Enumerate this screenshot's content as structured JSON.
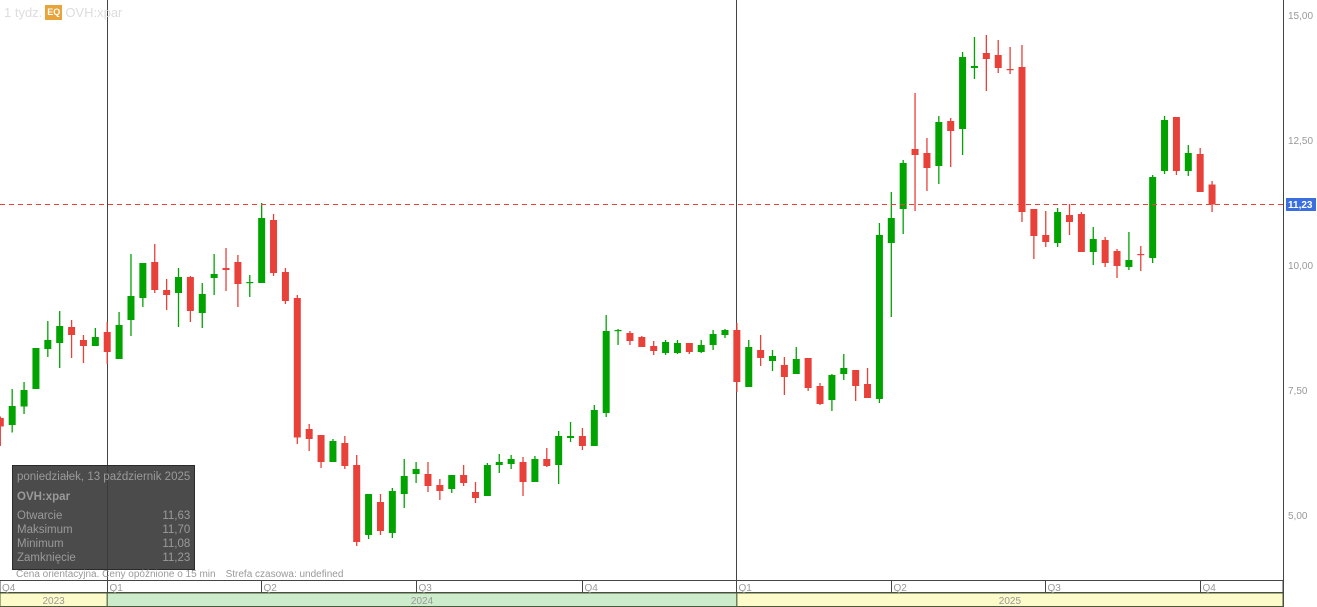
{
  "header": {
    "interval": "1 tydz.",
    "badge": "EQ",
    "symbol": "OVH:xpar"
  },
  "tooltip": {
    "date": "poniedziałek, 13 październik 2025",
    "symbol": "OVH:xpar",
    "rows": [
      {
        "label": "Otwarcie",
        "value": "11,63"
      },
      {
        "label": "Maksimum",
        "value": "11,70"
      },
      {
        "label": "Minimum",
        "value": "11,08"
      },
      {
        "label": "Zamknięcie",
        "value": "11,23"
      }
    ]
  },
  "footer": {
    "disclaimer": "Cena orientacyjna. Ceny opóźnione o 15 min",
    "timezone": "Strefa czasowa: undefined"
  },
  "colors": {
    "up": "#00a300",
    "down": "#e8413a",
    "last_price": "#3b6fe0",
    "year_odd": "#fdfbc9",
    "year_even": "#cdeccc"
  },
  "chart_data": {
    "type": "candlestick",
    "interval": "weekly",
    "ylim": [
      3.7,
      15.32
    ],
    "y_ticks": [
      "15,00",
      "12,50",
      "10,00",
      "7,50",
      "5,00"
    ],
    "y_tick_values": [
      15,
      12.5,
      10,
      7.5,
      5
    ],
    "last_price": {
      "value": 11.23,
      "label": "11,23"
    },
    "quarters": [
      {
        "label": "Q4",
        "start": 0
      },
      {
        "label": "Q1",
        "start": 9
      },
      {
        "label": "Q2",
        "start": 22
      },
      {
        "label": "Q3",
        "start": 35
      },
      {
        "label": "Q4",
        "start": 49
      },
      {
        "label": "Q1",
        "start": 62
      },
      {
        "label": "Q2",
        "start": 75
      },
      {
        "label": "Q3",
        "start": 88
      },
      {
        "label": "Q4",
        "start": 101
      }
    ],
    "years": [
      {
        "label": "2023",
        "start": 0,
        "end": 9
      },
      {
        "label": "2024",
        "start": 9,
        "end": 62
      },
      {
        "label": "2025",
        "start": 62,
        "end": 108
      }
    ],
    "year_separators": [
      9,
      62
    ],
    "ohlc": [
      [
        6.96,
        6.99,
        6.4,
        6.79
      ],
      [
        6.82,
        7.54,
        6.67,
        7.2
      ],
      [
        7.19,
        7.68,
        7.04,
        7.52
      ],
      [
        7.54,
        8.36,
        7.54,
        8.36
      ],
      [
        8.34,
        8.9,
        8.18,
        8.52
      ],
      [
        8.46,
        9.1,
        7.96,
        8.8
      ],
      [
        8.78,
        8.92,
        8.16,
        8.62
      ],
      [
        8.52,
        8.62,
        8.06,
        8.4
      ],
      [
        8.4,
        8.76,
        8.4,
        8.58
      ],
      [
        8.68,
        8.88,
        8.04,
        8.28
      ],
      [
        8.14,
        9.08,
        8.14,
        8.82
      ],
      [
        8.92,
        10.24,
        8.6,
        9.4
      ],
      [
        9.36,
        10.06,
        9.18,
        10.06
      ],
      [
        10.08,
        10.44,
        9.46,
        9.52
      ],
      [
        9.52,
        9.74,
        9.12,
        9.42
      ],
      [
        9.46,
        9.96,
        8.78,
        9.78
      ],
      [
        9.78,
        9.8,
        8.88,
        9.1
      ],
      [
        9.06,
        9.66,
        8.76,
        9.44
      ],
      [
        9.76,
        10.24,
        9.42,
        9.84
      ],
      [
        9.96,
        10.36,
        9.5,
        9.92
      ],
      [
        10.08,
        10.22,
        9.18,
        9.64
      ],
      [
        9.66,
        9.82,
        9.38,
        9.68
      ],
      [
        9.66,
        11.26,
        9.66,
        10.96
      ],
      [
        10.92,
        11.04,
        9.8,
        9.86
      ],
      [
        9.88,
        9.96,
        9.24,
        9.3
      ],
      [
        9.36,
        9.42,
        6.44,
        6.57
      ],
      [
        6.74,
        6.84,
        6.3,
        6.54
      ],
      [
        6.62,
        6.62,
        5.96,
        6.08
      ],
      [
        6.08,
        6.54,
        6.08,
        6.5
      ],
      [
        6.46,
        6.6,
        5.94,
        6.0
      ],
      [
        6.02,
        6.22,
        4.4,
        4.48
      ],
      [
        4.62,
        5.44,
        4.54,
        5.44
      ],
      [
        5.28,
        5.44,
        4.62,
        4.7
      ],
      [
        4.66,
        5.56,
        4.56,
        5.5
      ],
      [
        5.44,
        6.14,
        5.16,
        5.8
      ],
      [
        5.84,
        6.08,
        5.66,
        5.94
      ],
      [
        5.84,
        6.08,
        5.48,
        5.6
      ],
      [
        5.62,
        5.74,
        5.32,
        5.5
      ],
      [
        5.54,
        5.82,
        5.46,
        5.82
      ],
      [
        5.82,
        6.02,
        5.6,
        5.66
      ],
      [
        5.48,
        5.68,
        5.26,
        5.36
      ],
      [
        5.4,
        6.06,
        5.4,
        6.02
      ],
      [
        6.02,
        6.24,
        5.86,
        6.08
      ],
      [
        6.04,
        6.22,
        5.94,
        6.14
      ],
      [
        6.08,
        6.18,
        5.4,
        5.68
      ],
      [
        5.68,
        6.2,
        5.68,
        6.14
      ],
      [
        6.14,
        6.36,
        5.98,
        6.0
      ],
      [
        6.02,
        6.7,
        5.64,
        6.6
      ],
      [
        6.56,
        6.88,
        6.48,
        6.6
      ],
      [
        6.6,
        6.76,
        6.32,
        6.4
      ],
      [
        6.4,
        7.22,
        6.4,
        7.12
      ],
      [
        7.06,
        9.02,
        6.98,
        8.7
      ],
      [
        8.7,
        8.74,
        8.42,
        8.72
      ],
      [
        8.66,
        8.7,
        8.42,
        8.5
      ],
      [
        8.58,
        8.6,
        8.38,
        8.38
      ],
      [
        8.4,
        8.5,
        8.22,
        8.3
      ],
      [
        8.26,
        8.52,
        8.22,
        8.48
      ],
      [
        8.26,
        8.52,
        8.24,
        8.46
      ],
      [
        8.46,
        8.46,
        8.24,
        8.28
      ],
      [
        8.28,
        8.52,
        8.26,
        8.42
      ],
      [
        8.42,
        8.72,
        8.32,
        8.64
      ],
      [
        8.62,
        8.74,
        8.56,
        8.72
      ],
      [
        8.72,
        8.86,
        7.48,
        7.68
      ],
      [
        7.58,
        8.52,
        7.58,
        8.38
      ],
      [
        8.32,
        8.62,
        8.0,
        8.16
      ],
      [
        8.1,
        8.32,
        7.9,
        8.2
      ],
      [
        8.02,
        8.18,
        7.42,
        7.78
      ],
      [
        7.84,
        8.38,
        7.84,
        8.14
      ],
      [
        8.16,
        8.16,
        7.5,
        7.56
      ],
      [
        7.6,
        7.66,
        7.22,
        7.24
      ],
      [
        7.32,
        7.84,
        7.1,
        7.82
      ],
      [
        7.84,
        8.24,
        7.72,
        7.96
      ],
      [
        7.92,
        7.92,
        7.3,
        7.6
      ],
      [
        7.64,
        7.96,
        7.36,
        7.36
      ],
      [
        7.34,
        10.86,
        7.26,
        10.62
      ],
      [
        10.46,
        11.48,
        8.98,
        10.96
      ],
      [
        11.14,
        12.12,
        10.64,
        12.06
      ],
      [
        12.34,
        13.46,
        11.1,
        12.22
      ],
      [
        12.26,
        12.56,
        11.5,
        11.96
      ],
      [
        12.0,
        13.0,
        11.64,
        12.88
      ],
      [
        12.9,
        12.96,
        11.98,
        12.7
      ],
      [
        12.74,
        14.28,
        12.22,
        14.18
      ],
      [
        13.96,
        14.58,
        13.74,
        14.0
      ],
      [
        14.26,
        14.62,
        13.5,
        14.14
      ],
      [
        14.22,
        14.52,
        13.86,
        13.96
      ],
      [
        13.94,
        14.38,
        13.84,
        13.92
      ],
      [
        13.98,
        14.42,
        10.88,
        11.08
      ],
      [
        11.14,
        11.14,
        10.14,
        10.6
      ],
      [
        10.62,
        11.1,
        10.38,
        10.48
      ],
      [
        10.46,
        11.16,
        10.38,
        11.08
      ],
      [
        11.02,
        11.24,
        10.62,
        10.88
      ],
      [
        11.04,
        11.08,
        10.28,
        10.28
      ],
      [
        10.28,
        10.78,
        10.02,
        10.54
      ],
      [
        10.52,
        10.58,
        9.98,
        10.06
      ],
      [
        10.3,
        10.34,
        9.76,
        10.0
      ],
      [
        9.98,
        10.68,
        9.92,
        10.12
      ],
      [
        10.24,
        10.4,
        9.9,
        10.22
      ],
      [
        10.16,
        11.82,
        10.06,
        11.78
      ],
      [
        11.9,
        13.0,
        11.84,
        12.92
      ],
      [
        12.98,
        12.98,
        11.82,
        11.9
      ],
      [
        11.9,
        12.42,
        11.8,
        12.26
      ],
      [
        12.24,
        12.36,
        11.48,
        11.48
      ],
      [
        11.63,
        11.7,
        11.08,
        11.23
      ]
    ]
  }
}
